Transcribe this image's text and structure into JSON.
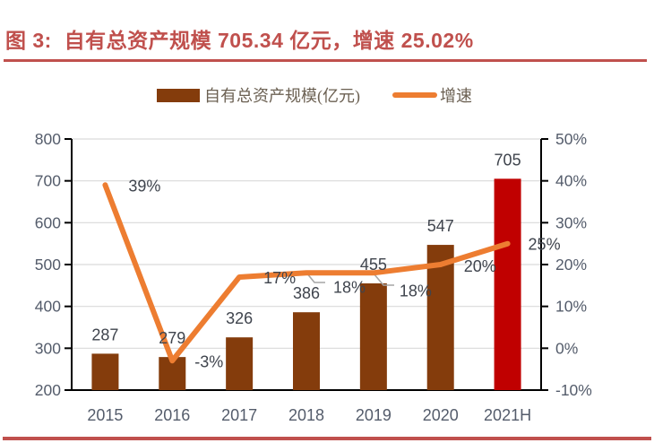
{
  "title": {
    "text": "图 3:  自有总资产规模 705.34 亿元，增速 25.02%"
  },
  "legend": {
    "items": [
      {
        "label": "自有总资产规模(亿元)",
        "swatch": "bar"
      },
      {
        "label": "增速",
        "swatch": "line"
      }
    ]
  },
  "colors": {
    "title": "#C0504D",
    "rule": "#C0504D",
    "bar": "#843C0C",
    "bar_highlight": "#C00000",
    "line": "#ED7D31",
    "grid": "#D9D9D9",
    "axis": "#000000",
    "tick_label": "#545C6B",
    "data_label": "#3F444D",
    "legend_text": "#6B6052",
    "leader": "#A6A6A6"
  },
  "chart_data": {
    "type": "bar+line combo",
    "categories": [
      "2015",
      "2016",
      "2017",
      "2018",
      "2019",
      "2020",
      "2021H"
    ],
    "series": [
      {
        "name": "自有总资产规模(亿元)",
        "type": "bar",
        "axis": "left",
        "values": [
          287,
          279,
          326,
          386,
          455,
          547,
          705
        ],
        "labels": [
          "287",
          "279",
          "326",
          "386",
          "455",
          "547",
          "705"
        ],
        "highlight_index": 6
      },
      {
        "name": "增速",
        "type": "line",
        "axis": "right",
        "values": [
          39,
          -3,
          17,
          18,
          18,
          20,
          25
        ],
        "labels": [
          "39%",
          "-3%",
          "17%",
          "18%",
          "18%",
          "20%",
          "25%"
        ]
      }
    ],
    "left_axis": {
      "min": 200,
      "max": 800,
      "step": 100,
      "ticks": [
        "200",
        "300",
        "400",
        "500",
        "600",
        "700",
        "800"
      ]
    },
    "right_axis": {
      "min": -10,
      "max": 50,
      "step": 10,
      "ticks": [
        "-10%",
        "0%",
        "10%",
        "20%",
        "30%",
        "40%",
        "50%"
      ]
    },
    "grid": "horizontal",
    "legend_position": "top-center"
  }
}
